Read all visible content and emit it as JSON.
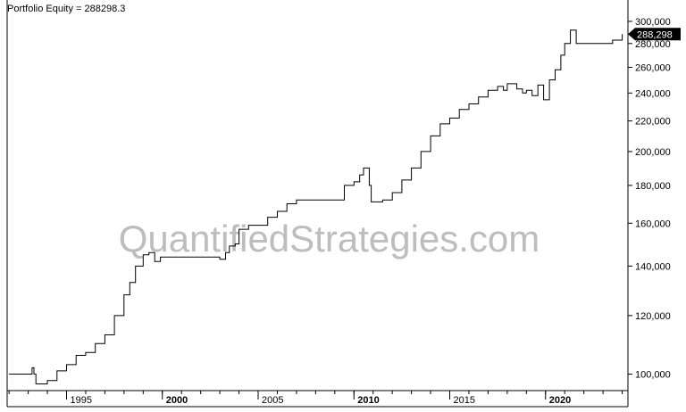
{
  "chart_data": {
    "type": "line",
    "title": "Portfolio Equity = 288298.3",
    "last_value_label": "288,298",
    "y_scale": "log",
    "ylim": [
      95000,
      305000
    ],
    "xlim": [
      1991.9,
      2024.3
    ],
    "y_ticks": [
      {
        "value": 100000,
        "label": "100,000"
      },
      {
        "value": 120000,
        "label": "120,000"
      },
      {
        "value": 140000,
        "label": "140,000"
      },
      {
        "value": 160000,
        "label": "160,000"
      },
      {
        "value": 180000,
        "label": "180,000"
      },
      {
        "value": 200000,
        "label": "200,000"
      },
      {
        "value": 220000,
        "label": "220,000"
      },
      {
        "value": 240000,
        "label": "240,000"
      },
      {
        "value": 260000,
        "label": "260,000"
      },
      {
        "value": 280000,
        "label": "280,000"
      },
      {
        "value": 300000,
        "label": "300,000"
      }
    ],
    "x_ticks": [
      {
        "value": 1995,
        "label": "1995",
        "bold": false
      },
      {
        "value": 2000,
        "label": "2000",
        "bold": true
      },
      {
        "value": 2005,
        "label": "2005",
        "bold": false
      },
      {
        "value": 2010,
        "label": "2010",
        "bold": true
      },
      {
        "value": 2015,
        "label": "2015",
        "bold": false
      },
      {
        "value": 2020,
        "label": "2020",
        "bold": true
      }
    ],
    "watermark": "QuantifiedStrategies.com",
    "series": [
      {
        "x": [
          1992.0,
          1993.0,
          1993.2,
          1993.3,
          1993.4,
          1993.6,
          1994.0,
          1994.5,
          1995.0,
          1995.5,
          1996.0,
          1996.5,
          1997.0,
          1997.5,
          1998.0,
          1998.3,
          1998.6,
          1999.0,
          1999.3,
          1999.6,
          1999.9,
          2000.2,
          2002.0,
          2003.0,
          2003.3,
          2003.5,
          2003.8,
          2004.0,
          2004.5,
          2005.0,
          2005.5,
          2006.0,
          2006.5,
          2007.0,
          2008.0,
          2009.0,
          2009.5,
          2010.0,
          2010.3,
          2010.5,
          2010.8,
          2010.9,
          2011.1,
          2011.5,
          2012.0,
          2012.5,
          2013.0,
          2013.5,
          2014.0,
          2014.5,
          2015.0,
          2015.5,
          2016.0,
          2016.5,
          2017.0,
          2017.5,
          2017.8,
          2018.0,
          2018.5,
          2018.8,
          2019.0,
          2019.3,
          2019.6,
          2019.9,
          2020.2,
          2020.5,
          2020.8,
          2021.0,
          2021.3,
          2021.6,
          2022.0,
          2023.0,
          2023.5,
          2024.0
        ],
        "y": [
          100000,
          100000,
          102000,
          100000,
          97000,
          97000,
          98000,
          101000,
          103000,
          106000,
          107000,
          110000,
          113000,
          120000,
          128000,
          133000,
          140000,
          145000,
          146000,
          142000,
          144000,
          144000,
          144000,
          143000,
          146000,
          149000,
          150000,
          157000,
          159000,
          159000,
          163000,
          166000,
          170000,
          172000,
          172000,
          172000,
          180000,
          182000,
          186000,
          190000,
          180000,
          171000,
          171000,
          172000,
          176000,
          183000,
          190000,
          200000,
          210000,
          218000,
          222000,
          228000,
          232000,
          237000,
          242000,
          245000,
          242000,
          247000,
          243000,
          240000,
          242000,
          238000,
          246000,
          235000,
          250000,
          258000,
          270000,
          280000,
          292000,
          280000,
          280000,
          280000,
          283000,
          288298
        ]
      }
    ]
  }
}
